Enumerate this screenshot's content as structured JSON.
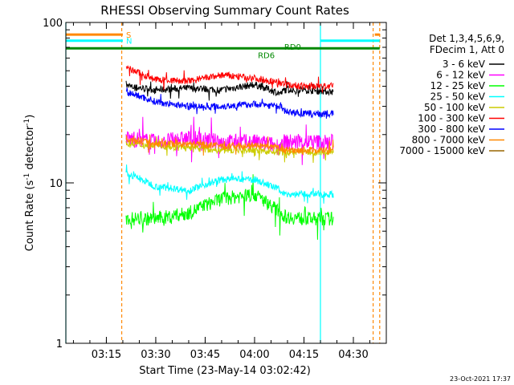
{
  "chart_data": {
    "type": "line",
    "title": "RHESSI Observing Summary Count Rates",
    "xlabel": "Start Time (23-May-14 03:02:42)",
    "ylabel": "Count Rate (s⁻¹ detector⁻¹)",
    "ylabel_parts": [
      "Count Rate (s",
      "-1",
      " detector",
      "-1",
      ")"
    ],
    "y_scale": "log",
    "ylim": [
      1,
      100
    ],
    "xlim": [
      "03:02:42",
      "04:40:00"
    ],
    "y_ticks": [
      "1",
      "10",
      "100"
    ],
    "x_ticks": [
      "03:15",
      "03:30",
      "03:45",
      "04:00",
      "04:15",
      "04:30"
    ],
    "legend_placement": "right",
    "legend_header": [
      "Det 1,3,4,5,6,9,",
      "FDecim 1, Att 0"
    ],
    "series": [
      {
        "name": "3 - 6 keV",
        "color": "#000000",
        "x": [
          "03:21",
          "03:30",
          "03:40",
          "03:50",
          "04:00",
          "04:08",
          "04:09",
          "04:15",
          "04:24"
        ],
        "values": [
          40,
          38,
          39,
          38,
          41,
          36,
          38,
          38,
          37
        ]
      },
      {
        "name": "6 - 12 keV",
        "color": "#ff00ff",
        "x": [
          "03:21",
          "03:30",
          "03:40",
          "03:50",
          "04:00",
          "04:08",
          "04:09",
          "04:15",
          "04:24"
        ],
        "values": [
          19,
          18,
          19,
          18,
          18,
          17,
          18,
          18,
          18
        ]
      },
      {
        "name": "12 - 25 keV",
        "color": "#00ff00",
        "x": [
          "03:21",
          "03:30",
          "03:40",
          "03:50",
          "04:00",
          "04:08",
          "04:09",
          "04:15",
          "04:24"
        ],
        "values": [
          6,
          6,
          6.5,
          8,
          8.5,
          6.5,
          6.2,
          6,
          6
        ]
      },
      {
        "name": "25 - 50 keV",
        "color": "#00ffff",
        "x": [
          "03:21",
          "03:30",
          "03:40",
          "03:50",
          "04:00",
          "04:08",
          "04:09",
          "04:15",
          "04:24"
        ],
        "values": [
          11.5,
          9.5,
          9,
          10.5,
          10.5,
          9,
          8.5,
          8.5,
          8.5
        ]
      },
      {
        "name": "50 - 100 keV",
        "color": "#cccc00",
        "x": [
          "03:21",
          "03:30",
          "03:40",
          "03:50",
          "04:00",
          "04:08",
          "04:09",
          "04:15",
          "04:24"
        ],
        "values": [
          17.5,
          17,
          16.5,
          16,
          16,
          15.5,
          15.5,
          15.5,
          15.5
        ]
      },
      {
        "name": "100 - 300 keV",
        "color": "#ff0000",
        "x": [
          "03:21",
          "03:30",
          "03:40",
          "03:50",
          "04:00",
          "04:08",
          "04:09",
          "04:15",
          "04:24"
        ],
        "values": [
          52,
          44,
          43,
          47,
          45,
          42,
          41,
          40,
          40
        ]
      },
      {
        "name": "300 - 800 keV",
        "color": "#0000ff",
        "x": [
          "03:21",
          "03:30",
          "03:40",
          "03:50",
          "04:00",
          "04:08",
          "04:09",
          "04:15",
          "04:24"
        ],
        "values": [
          37,
          32,
          30,
          30,
          31,
          30,
          28,
          27,
          27
        ]
      },
      {
        "name": "800 - 7000 keV",
        "color": "#ff8800",
        "x": [
          "03:21",
          "03:30",
          "03:40",
          "03:50",
          "04:00",
          "04:08",
          "04:09",
          "04:15",
          "04:24"
        ],
        "values": [
          19,
          17.5,
          17.5,
          17,
          17,
          16.5,
          16,
          16,
          16
        ]
      },
      {
        "name": "7000 - 15000 keV",
        "color": "#996600",
        "x": [],
        "values": []
      }
    ],
    "flags": [
      {
        "label": "S",
        "color": "#ff8800",
        "y": 84,
        "segments": [
          [
            "03:02:42",
            "03:20:00"
          ],
          [
            "04:36:30",
            "04:38:00"
          ]
        ]
      },
      {
        "label": "N",
        "color": "#00ffff",
        "y": 77,
        "segments": [
          [
            "03:02:42",
            "03:20:00"
          ],
          [
            "04:20:00",
            "04:38:00"
          ]
        ]
      },
      {
        "label": "",
        "color": "#008800",
        "y": 69,
        "segments": [
          [
            "03:02:42",
            "04:38:00"
          ]
        ]
      }
    ],
    "flag_labels": [
      {
        "text": "RD0",
        "color": "#008800",
        "x": "04:09",
        "y": 70
      },
      {
        "text": "RD6",
        "color": "#008800",
        "x": "04:01",
        "y": 62
      }
    ],
    "vertical_lines": [
      {
        "x": "03:02:42",
        "color": "#00ffff",
        "style": "solid"
      },
      {
        "x": "03:19:40",
        "color": "#ff8800",
        "style": "dashed"
      },
      {
        "x": "04:20:00",
        "color": "#00ffff",
        "style": "solid"
      },
      {
        "x": "04:36:00",
        "color": "#ff8800",
        "style": "dashed"
      },
      {
        "x": "04:38:00",
        "color": "#ff8800",
        "style": "dashed"
      }
    ]
  },
  "footer_date": "23-Oct-2021 17:37"
}
